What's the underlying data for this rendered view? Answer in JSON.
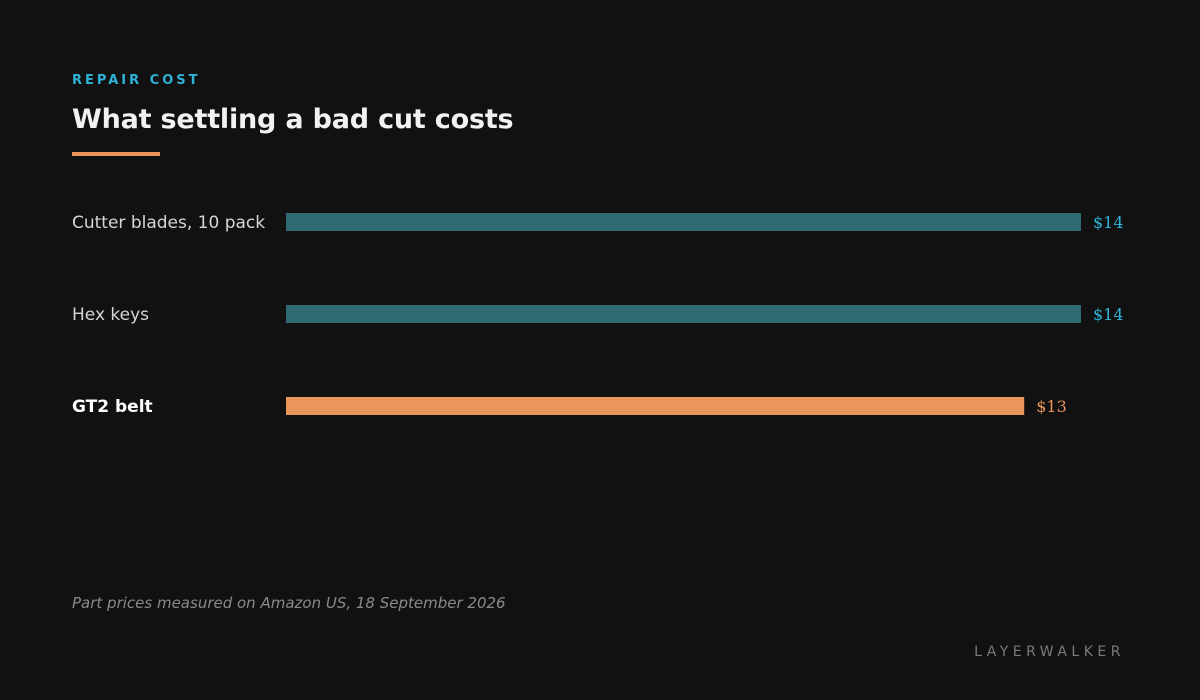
{
  "header": {
    "eyebrow": "REPAIR COST",
    "title": "What settling a bad cut costs"
  },
  "colors": {
    "accent": "#2fb3d8",
    "bar_default": "#2e6a72",
    "bar_highlight": "#e9955c",
    "value_default": "#2fb3d8",
    "value_highlight": "#e9955c",
    "background": "#111111"
  },
  "chart_data": {
    "type": "bar",
    "orientation": "horizontal",
    "categories": [
      "Cutter blades, 10 pack",
      "Hex keys",
      "GT2 belt"
    ],
    "values": [
      14,
      14,
      13
    ],
    "value_labels": [
      "$14",
      "$14",
      "$13"
    ],
    "highlight": "GT2 belt",
    "title": "What settling a bad cut costs",
    "xlabel": "",
    "ylabel": "",
    "xlim": [
      0,
      14
    ],
    "grid": false,
    "legend": "none"
  },
  "footnote": "Part prices measured on Amazon US, 18 September 2026",
  "brand": "LAYERWALKER"
}
